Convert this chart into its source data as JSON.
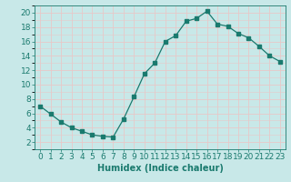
{
  "x": [
    0,
    1,
    2,
    3,
    4,
    5,
    6,
    7,
    8,
    9,
    10,
    11,
    12,
    13,
    14,
    15,
    16,
    17,
    18,
    19,
    20,
    21,
    22,
    23
  ],
  "y": [
    7.0,
    5.9,
    4.8,
    4.0,
    3.5,
    3.0,
    2.8,
    2.7,
    5.2,
    8.3,
    11.5,
    13.0,
    16.0,
    16.8,
    18.8,
    19.2,
    20.2,
    18.4,
    18.1,
    17.1,
    16.5,
    15.3,
    14.0,
    13.2
  ],
  "line_color": "#1a7a6e",
  "marker": "s",
  "marker_size": 2.2,
  "bg_color": "#c8e8e8",
  "grid_color": "#e8c8c8",
  "xlabel": "Humidex (Indice chaleur)",
  "xlim": [
    -0.5,
    23.5
  ],
  "ylim": [
    1,
    21
  ],
  "yticks": [
    2,
    4,
    6,
    8,
    10,
    12,
    14,
    16,
    18,
    20
  ],
  "xticks": [
    0,
    1,
    2,
    3,
    4,
    5,
    6,
    7,
    8,
    9,
    10,
    11,
    12,
    13,
    14,
    15,
    16,
    17,
    18,
    19,
    20,
    21,
    22,
    23
  ],
  "label_fontsize": 7,
  "tick_fontsize": 6.5
}
